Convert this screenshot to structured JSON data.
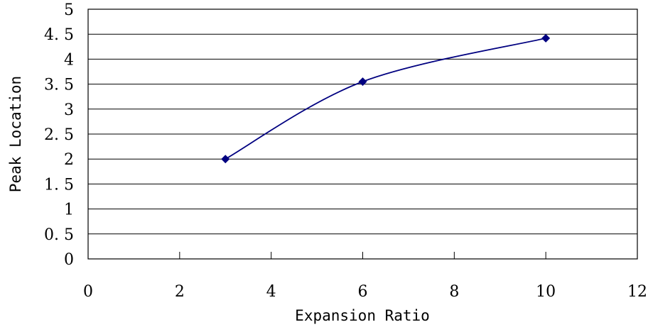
{
  "chart_data": {
    "type": "line",
    "title": "",
    "xlabel": "Expansion Ratio",
    "ylabel": "Peak Location",
    "xlim": [
      0,
      12
    ],
    "ylim": [
      0,
      5
    ],
    "x_ticks": [
      0,
      2,
      4,
      6,
      8,
      10,
      12
    ],
    "y_ticks": [
      0,
      0.5,
      1,
      1.5,
      2,
      2.5,
      3,
      3.5,
      4,
      4.5,
      5
    ],
    "x_tick_labels": [
      "0",
      "2",
      "4",
      "6",
      "8",
      "10",
      "12"
    ],
    "y_tick_labels": [
      "0",
      "0. 5",
      "1",
      "1. 5",
      "2",
      "2. 5",
      "3",
      "3. 5",
      "4",
      "4. 5",
      "5"
    ],
    "grid": "horizontal",
    "legend": "none",
    "series": [
      {
        "x": [
          3,
          6,
          10
        ],
        "y": [
          2.0,
          3.55,
          4.42
        ],
        "smooth": true,
        "marker": "diamond",
        "color": "#000080"
      }
    ]
  }
}
